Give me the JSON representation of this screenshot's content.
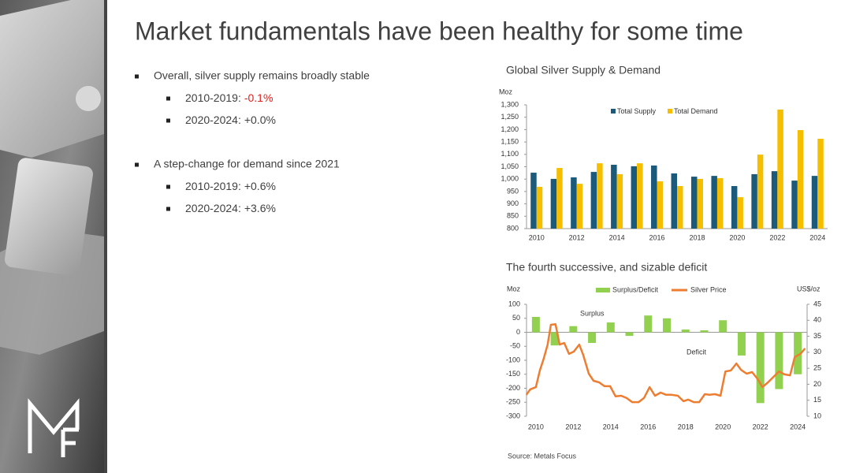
{
  "slide": {
    "title": "Market fundamentals have been healthy for some time",
    "bullets": [
      {
        "text": "Overall, silver supply remains broadly stable",
        "items": [
          {
            "label": "2010-2019:",
            "value": "-0.1%"
          },
          {
            "label": "2020-2024:",
            "value": "+0.0%"
          }
        ]
      },
      {
        "text": "A step-change for demand since 2021",
        "items": [
          {
            "label": "2010-2019:",
            "value": "+0.6%"
          },
          {
            "label": "2020-2024:",
            "value": "+3.6%"
          }
        ]
      }
    ],
    "source": "Source: Metals Focus"
  },
  "chart_data": [
    {
      "type": "bar",
      "title": "Global Silver Supply & Demand",
      "ylabel": "Moz",
      "x": [
        2010,
        2011,
        2012,
        2013,
        2014,
        2015,
        2016,
        2017,
        2018,
        2019,
        2020,
        2021,
        2022,
        2023,
        2024
      ],
      "xlim": [
        2009.5,
        2024.5
      ],
      "xticks": [
        2010,
        2012,
        2014,
        2016,
        2018,
        2020,
        2022,
        2024
      ],
      "ylim": [
        800,
        1300
      ],
      "yticks": [
        800,
        850,
        900,
        950,
        {
          "value": 1000,
          "label": "1,000"
        },
        {
          "value": 1050,
          "label": "1,050"
        },
        {
          "value": 1100,
          "label": "1,100"
        },
        {
          "value": 1150,
          "label": "1,150"
        },
        {
          "value": 1200,
          "label": "1,200"
        },
        {
          "value": 1250,
          "label": "1,250"
        },
        {
          "value": 1300,
          "label": "1,300"
        }
      ],
      "legend": "top",
      "series": [
        {
          "name": "Total Supply",
          "color": "#1b5a7a",
          "values": [
            1026,
            1001,
            1007,
            1029,
            1058,
            1052,
            1055,
            1023,
            1010,
            1013,
            972,
            1020,
            1032,
            994,
            1013
          ]
        },
        {
          "name": "Total Demand",
          "color": "#f5bf00",
          "values": [
            969,
            1045,
            981,
            1064,
            1020,
            1064,
            991,
            972,
            1001,
            1004,
            927,
            1099,
            1281,
            1198,
            1163
          ]
        }
      ]
    },
    {
      "type": "combo",
      "title": "The fourth successive, and sizable deficit",
      "ylabel": "Moz",
      "y2label": "US$/oz",
      "annotations": [
        "Surplus",
        "Deficit"
      ],
      "xlim": [
        2009.5,
        2024.5
      ],
      "xticks": [
        2010,
        2012,
        2014,
        2016,
        2018,
        2020,
        2022,
        2024
      ],
      "ylim": [
        -300,
        100
      ],
      "yticks": [
        -300,
        -250,
        -200,
        -150,
        -100,
        -50,
        0,
        50,
        100
      ],
      "y2lim": [
        10,
        45
      ],
      "y2ticks": [
        10,
        15,
        20,
        25,
        30,
        35,
        40,
        45
      ],
      "legend": "top",
      "series": [
        {
          "name": "Surplus/Deficit",
          "type": "bar",
          "color": "#92d050",
          "x": [
            2010,
            2011,
            2012,
            2013,
            2014,
            2015,
            2016,
            2017,
            2018,
            2019,
            2020,
            2021,
            2022,
            2023,
            2024
          ],
          "values": [
            55,
            -47,
            22,
            -38,
            35,
            -13,
            60,
            50,
            10,
            7,
            43,
            -83,
            -253,
            -203,
            -150
          ]
        },
        {
          "name": "Silver Price",
          "type": "line",
          "axis": "y2",
          "color": "#ed7d31",
          "x": [
            2009.49,
            2009.7,
            2010.0,
            2010.21,
            2010.42,
            2010.63,
            2010.8,
            2011.05,
            2011.27,
            2011.52,
            2011.77,
            2012.03,
            2012.32,
            2012.53,
            2012.83,
            2013.08,
            2013.38,
            2013.67,
            2013.97,
            2014.26,
            2014.56,
            2014.85,
            2015.15,
            2015.49,
            2015.78,
            2016.08,
            2016.37,
            2016.67,
            2016.96,
            2017.26,
            2017.59,
            2017.89,
            2018.14,
            2018.44,
            2018.73,
            2019.03,
            2019.28,
            2019.58,
            2019.87,
            2020.13,
            2020.42,
            2020.72,
            2020.97,
            2021.27,
            2021.56,
            2021.86,
            2022.11,
            2022.41,
            2022.7,
            2023.0,
            2023.29,
            2023.59,
            2023.84,
            2024.14,
            2024.39
          ],
          "values": [
            16.7,
            18.4,
            19.1,
            24.3,
            28.0,
            32.4,
            38.6,
            38.8,
            32.4,
            32.9,
            29.5,
            30.2,
            32.4,
            29.2,
            23.3,
            21.1,
            20.6,
            19.4,
            19.4,
            16.2,
            16.4,
            15.7,
            14.4,
            14.4,
            15.7,
            19.1,
            16.4,
            17.4,
            16.7,
            16.7,
            16.4,
            14.7,
            15.2,
            14.4,
            14.4,
            16.9,
            16.7,
            16.9,
            16.4,
            24.0,
            24.3,
            26.5,
            24.5,
            23.3,
            23.8,
            21.6,
            19.1,
            20.6,
            22.3,
            24.0,
            23.1,
            22.8,
            28.5,
            29.5,
            31.2
          ]
        }
      ]
    }
  ]
}
